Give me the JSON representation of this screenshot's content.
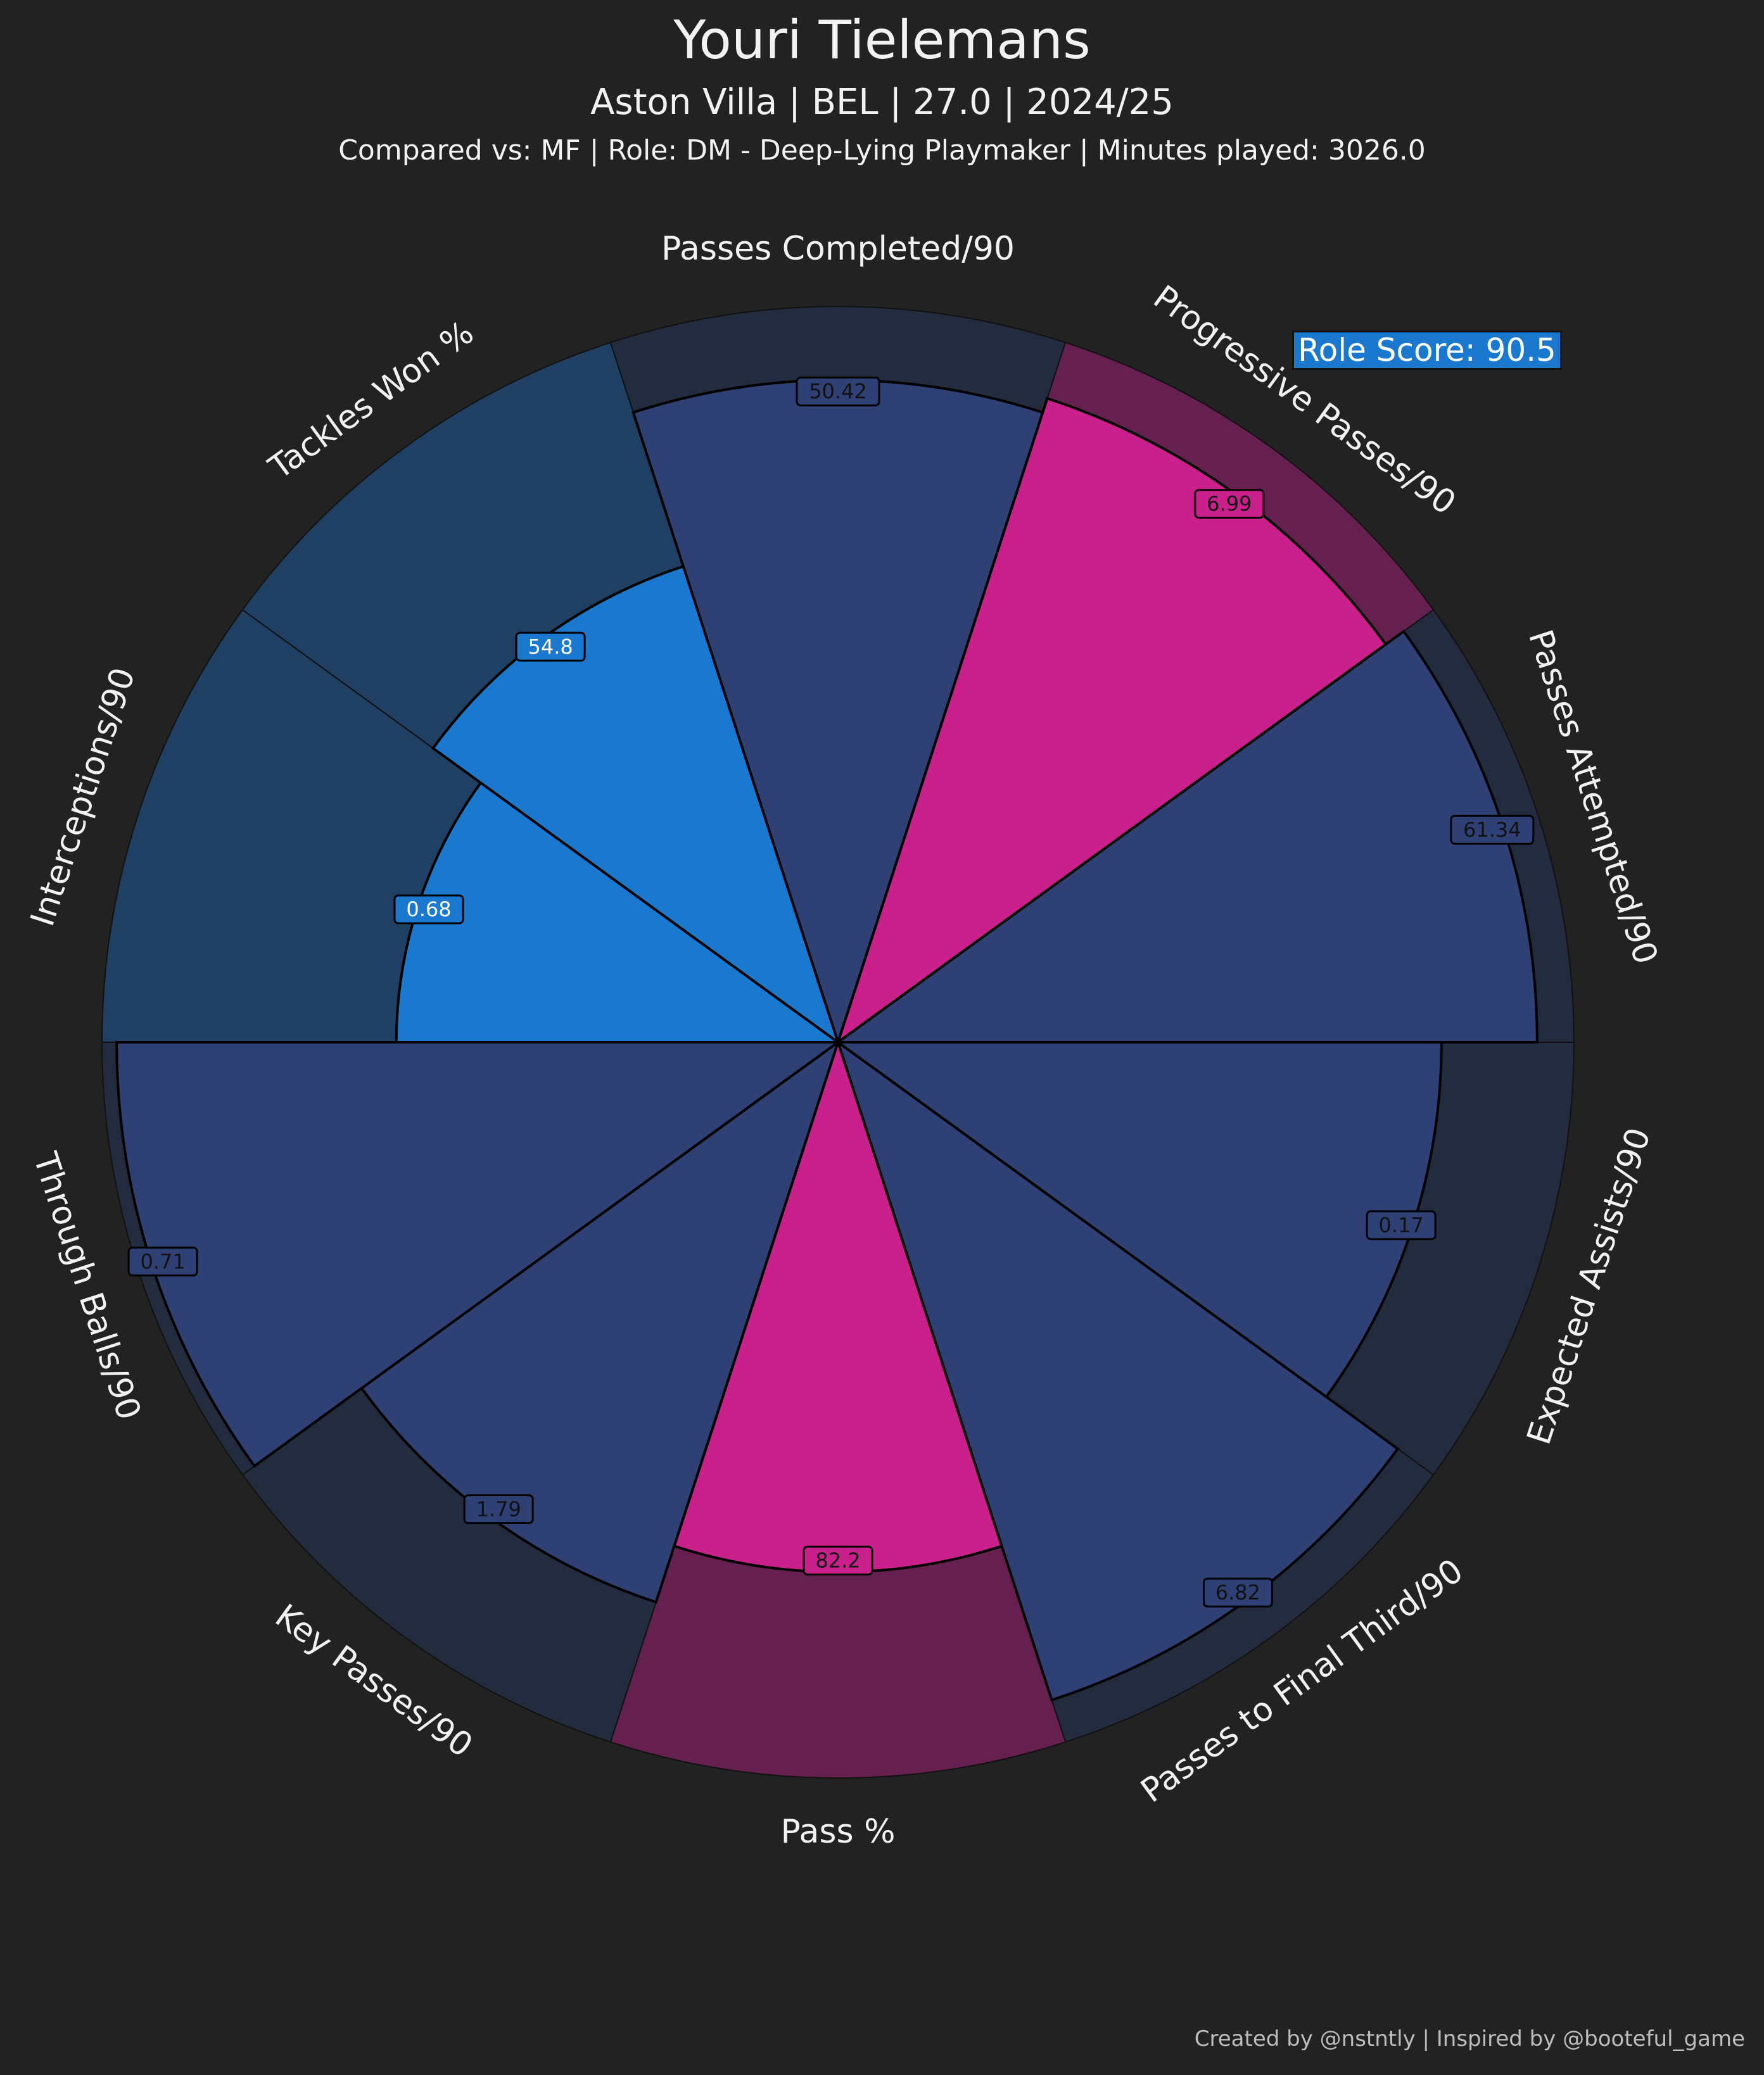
{
  "header": {
    "title": "Youri Tielemans",
    "subtitle": "Aston Villa | BEL | 27.0 | 2024/25",
    "subsubtitle": "Compared vs: MF | Role: DM - Deep-Lying Playmaker | Minutes played: 3026.0"
  },
  "role_score_label": "Role Score: 90.5",
  "credit": "Created by @nstntly | Inspired by @booteful_game",
  "colors": {
    "background": "#222222",
    "attacking": "#2e4074",
    "attacking_bg": "#232c3e",
    "defending": "#1a78cf",
    "defending_bg": "#1f3f63",
    "highlight": "#c9208c",
    "highlight_bg": "#66204f"
  },
  "chart_data": {
    "type": "radar",
    "parameters": [
      {
        "name": "Passes Completed/90",
        "value": "50.42",
        "percentile": 90,
        "group": "attacking"
      },
      {
        "name": "Progressive Passes/90",
        "value": "6.99",
        "percentile": 92,
        "group": "highlight"
      },
      {
        "name": "Passes Attempted/90",
        "value": "61.34",
        "percentile": 95,
        "group": "attacking"
      },
      {
        "name": "Expected Assists/90",
        "value": "0.17",
        "percentile": 82,
        "group": "attacking"
      },
      {
        "name": "Passes to Final Third/90",
        "value": "6.82",
        "percentile": 94,
        "group": "attacking"
      },
      {
        "name": "Pass %",
        "value": "82.2",
        "percentile": 72,
        "group": "highlight"
      },
      {
        "name": "Key Passes/90",
        "value": "1.79",
        "percentile": 80,
        "group": "attacking"
      },
      {
        "name": "Through Balls/90",
        "value": "0.71",
        "percentile": 98,
        "group": "attacking"
      },
      {
        "name": "Interceptions/90",
        "value": "0.68",
        "percentile": 60,
        "group": "defending"
      },
      {
        "name": "Tackles Won %",
        "value": "54.8",
        "percentile": 68,
        "group": "defending"
      }
    ],
    "range": [
      0,
      100
    ]
  }
}
